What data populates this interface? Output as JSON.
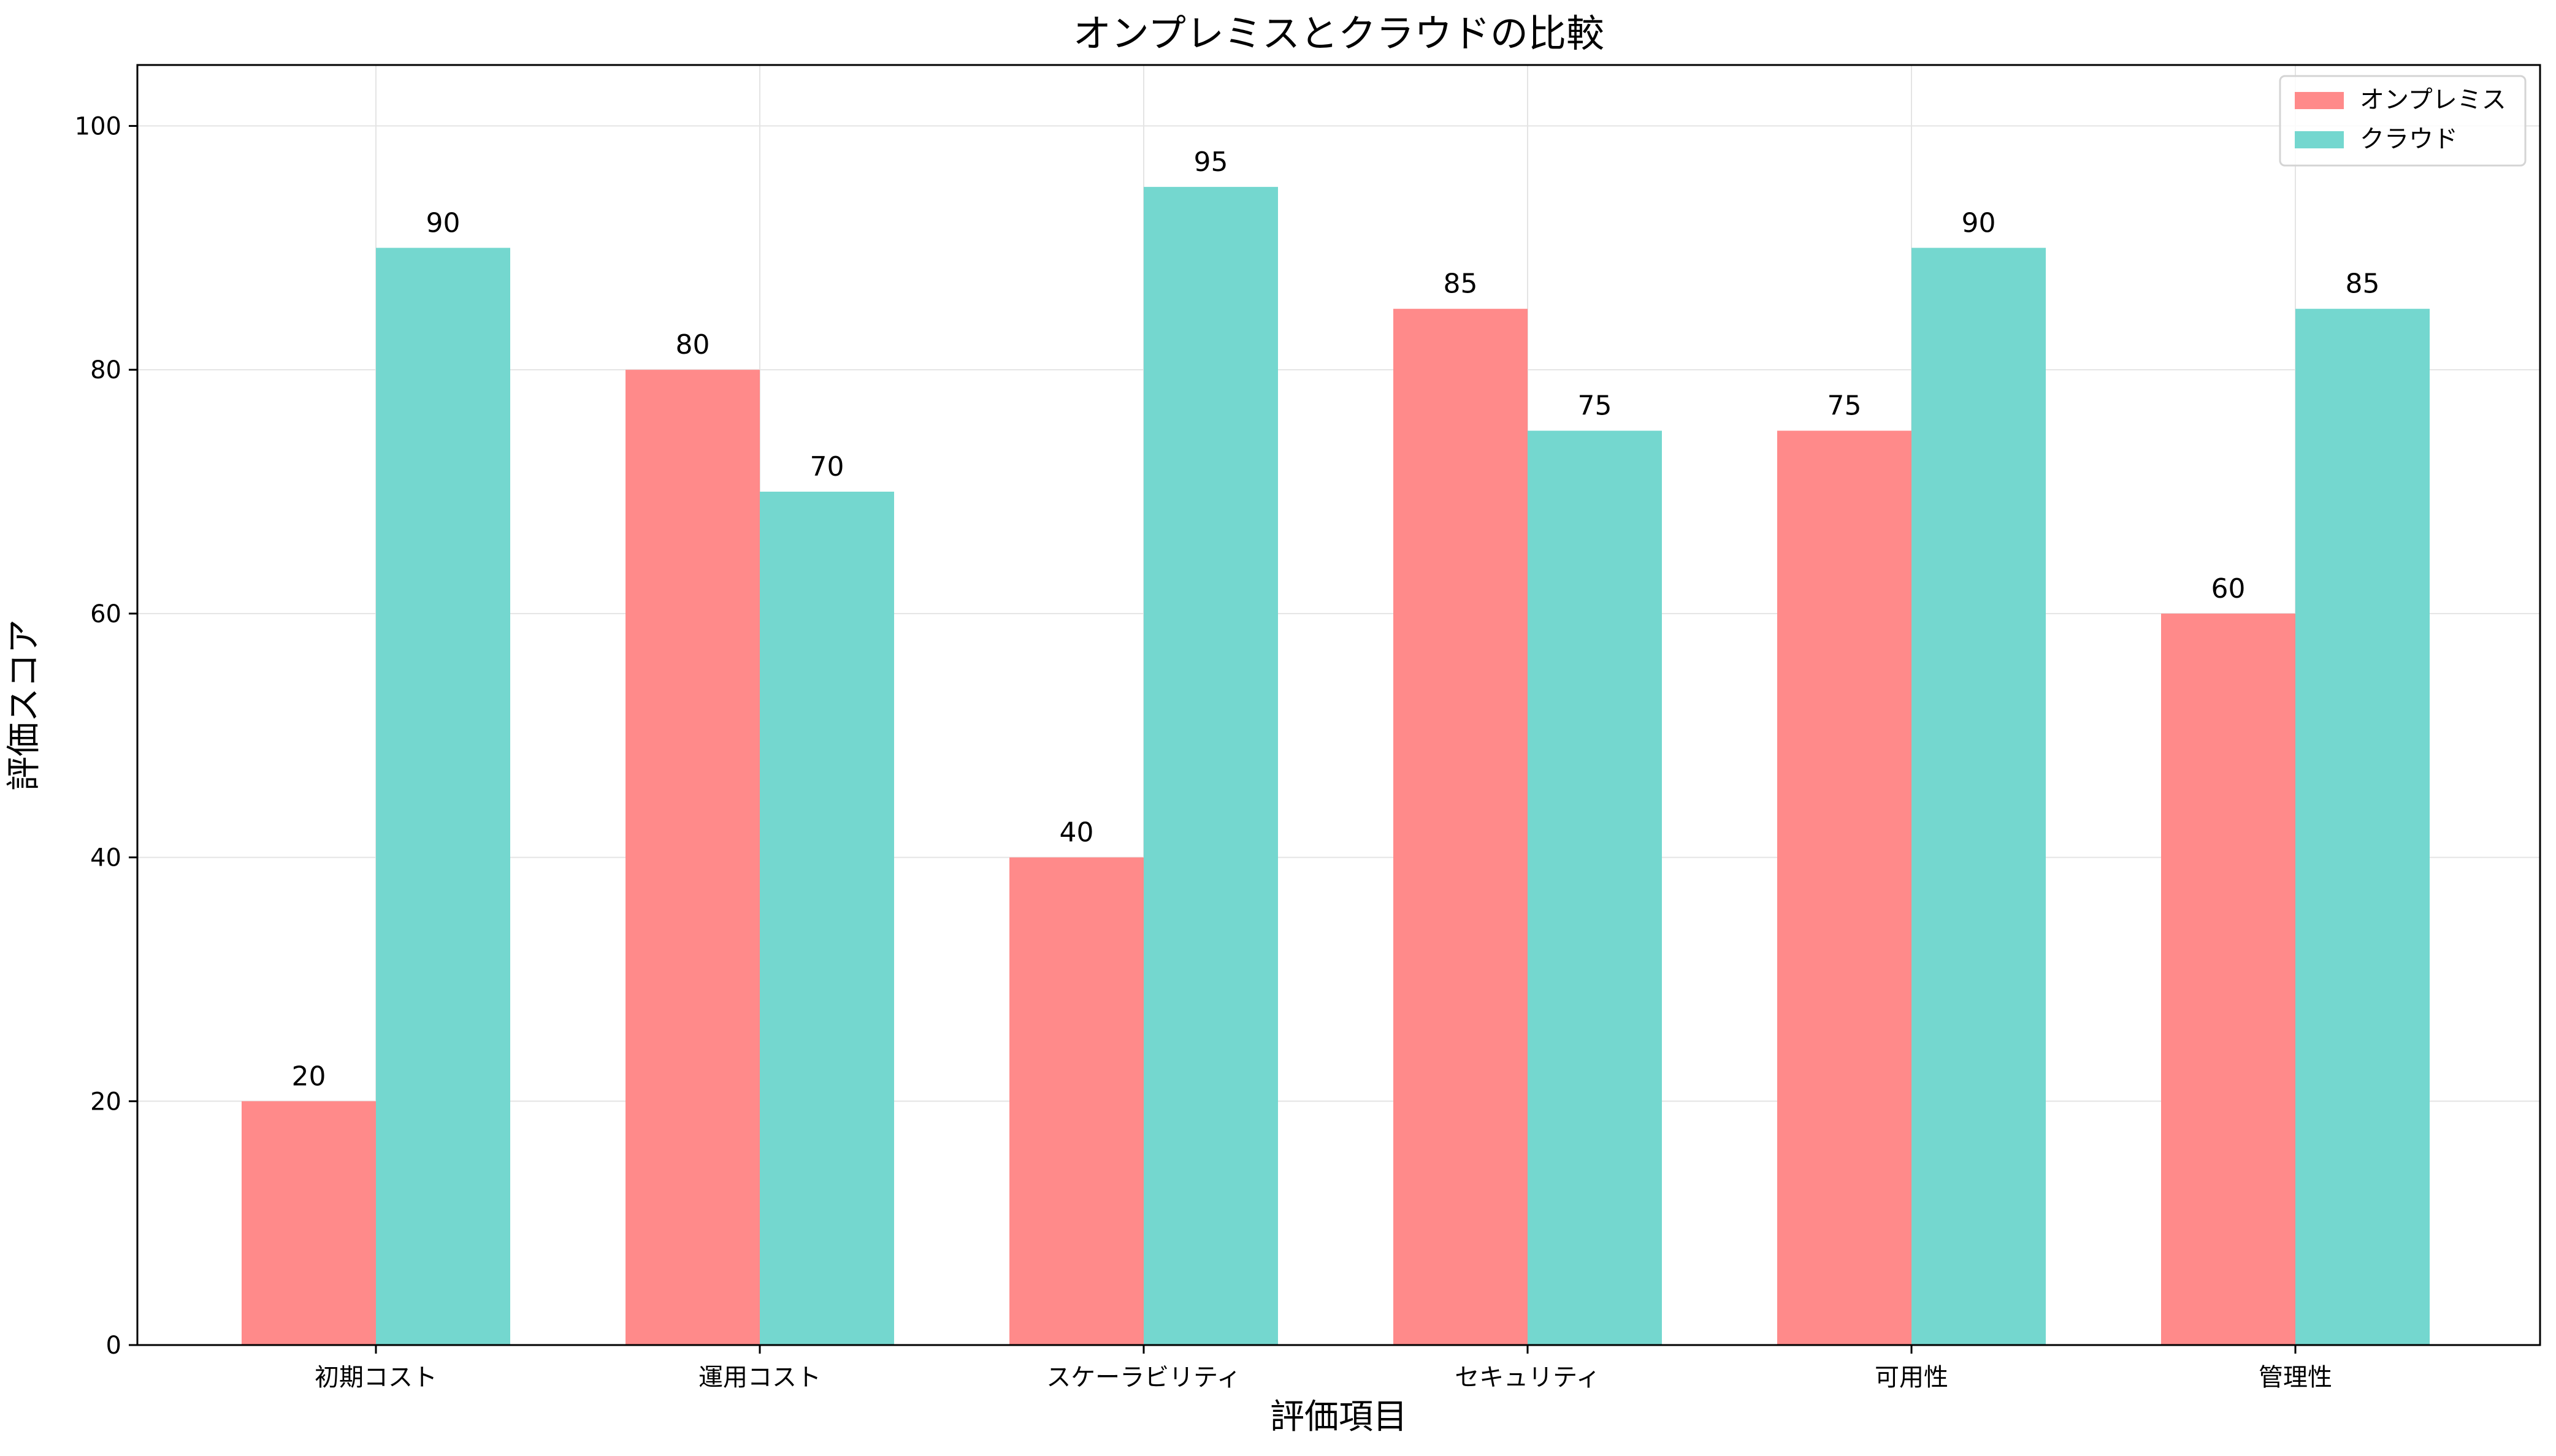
{
  "chart_data": {
    "type": "bar",
    "title": "オンプレミスとクラウドの比較",
    "xlabel": "評価項目",
    "ylabel": "評価スコア",
    "categories": [
      "初期コスト",
      "運用コスト",
      "スケーラビリティ",
      "セキュリティ",
      "可用性",
      "管理性"
    ],
    "series": [
      {
        "name": "オンプレミス",
        "values": [
          20,
          80,
          40,
          85,
          75,
          60
        ],
        "color": "#FF8A8A"
      },
      {
        "name": "クラウド",
        "values": [
          90,
          70,
          95,
          75,
          90,
          85
        ],
        "color": "#74D7CF"
      }
    ],
    "ylim": [
      0,
      105
    ],
    "yticks": [
      0,
      20,
      40,
      60,
      80,
      100
    ],
    "grid": true,
    "legend_position": "top-right"
  }
}
